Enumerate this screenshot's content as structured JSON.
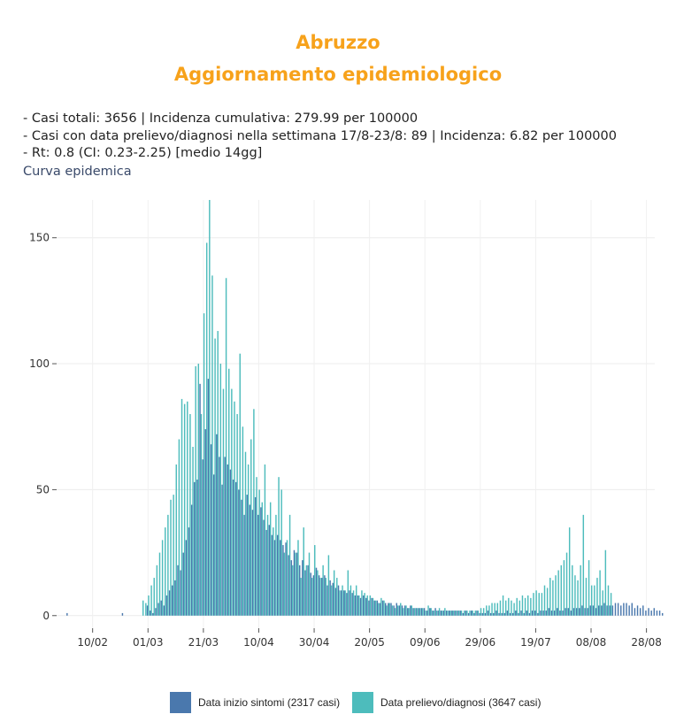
{
  "header": {
    "title_line1": "Abruzzo",
    "title_line2": "Aggiornamento epidemiologico",
    "title_color": "#f7a21b",
    "info_lines": [
      "- Casi totali: 3656 | Incidenza cumulativa: 279.99 per 100000",
      "- Casi con data prelievo/diagnosi nella settimana 17/8-23/8: 89 | Incidenza: 6.82 per 100000",
      "- Rt: 0.8 (CI: 0.23-2.25) [medio 14gg]"
    ],
    "subtitle": "Curva epidemica"
  },
  "chart_data": {
    "type": "bar",
    "x_axis": "date",
    "xlim": [
      "2020-01-28",
      "2020-08-31"
    ],
    "ylim": [
      -5,
      165
    ],
    "yticks": [
      0,
      50,
      100,
      150
    ],
    "ytick_labels": [
      "0",
      "50",
      "100",
      "150"
    ],
    "xtick_dates": [
      "2020-02-10",
      "2020-03-01",
      "2020-03-21",
      "2020-04-10",
      "2020-04-30",
      "2020-05-20",
      "2020-06-09",
      "2020-06-29",
      "2020-07-19",
      "2020-08-08",
      "2020-08-28"
    ],
    "xtick_labels": [
      "10/02",
      "01/03",
      "21/03",
      "10/04",
      "30/04",
      "20/05",
      "09/06",
      "29/06",
      "19/07",
      "08/08",
      "28/08"
    ],
    "grid": true,
    "legend_position": "bottom",
    "series": [
      {
        "name": "Data inizio sintomi (2317 casi)",
        "color": "#4a78ad",
        "start_date": "2020-02-01",
        "values": [
          1,
          0,
          0,
          0,
          0,
          0,
          0,
          0,
          0,
          0,
          0,
          0,
          0,
          0,
          0,
          0,
          0,
          0,
          0,
          0,
          1,
          0,
          0,
          0,
          0,
          0,
          0,
          0,
          0,
          4,
          2,
          1,
          3,
          5,
          6,
          4,
          8,
          10,
          12,
          14,
          20,
          18,
          25,
          30,
          35,
          44,
          53,
          54,
          92,
          62,
          74,
          94,
          68,
          56,
          72,
          63,
          52,
          63,
          60,
          58,
          54,
          53,
          50,
          46,
          40,
          48,
          44,
          42,
          47,
          40,
          43,
          38,
          34,
          36,
          32,
          30,
          32,
          30,
          28,
          29,
          24,
          22,
          26,
          25,
          20,
          22,
          18,
          20,
          17,
          16,
          19,
          16,
          15,
          16,
          12,
          14,
          13,
          11,
          12,
          10,
          10,
          9,
          10,
          9,
          8,
          8,
          7,
          8,
          7,
          6,
          7,
          6,
          6,
          5,
          6,
          5,
          5,
          5,
          4,
          5,
          4,
          4,
          4,
          3,
          4,
          3,
          3,
          3,
          3,
          3,
          2,
          3,
          2,
          3,
          2,
          2,
          2,
          2,
          2,
          2,
          2,
          2,
          2,
          1,
          2,
          1,
          2,
          1,
          2,
          1,
          1,
          1,
          2,
          1,
          1,
          2,
          1,
          1,
          1,
          2,
          1,
          1,
          2,
          1,
          2,
          1,
          2,
          1,
          2,
          2,
          1,
          2,
          2,
          2,
          3,
          2,
          2,
          3,
          2,
          2,
          3,
          3,
          2,
          3,
          3,
          3,
          4,
          3,
          3,
          4,
          4,
          3,
          4,
          4,
          5,
          4,
          4,
          4,
          5,
          5,
          4,
          5,
          5,
          4,
          5,
          3,
          4,
          3,
          4,
          2,
          3,
          2,
          3,
          2,
          2,
          1
        ]
      },
      {
        "name": "Data prelievo/diagnosi (3647 casi)",
        "color": "#4dbcbc",
        "start_date": "2020-02-28",
        "values": [
          6,
          5,
          8,
          12,
          15,
          20,
          25,
          30,
          35,
          40,
          46,
          48,
          60,
          70,
          86,
          84,
          85,
          80,
          67,
          99,
          100,
          80,
          120,
          148,
          165,
          135,
          110,
          113,
          100,
          90,
          134,
          98,
          90,
          85,
          80,
          104,
          75,
          65,
          60,
          70,
          82,
          55,
          50,
          45,
          60,
          40,
          45,
          35,
          40,
          55,
          50,
          25,
          30,
          40,
          20,
          25,
          30,
          15,
          35,
          20,
          25,
          15,
          28,
          18,
          15,
          20,
          15,
          24,
          12,
          18,
          15,
          10,
          12,
          10,
          18,
          12,
          10,
          12,
          8,
          10,
          9,
          8,
          8,
          7,
          6,
          5,
          7,
          6,
          4,
          5,
          4,
          3,
          4,
          5,
          3,
          4,
          3,
          4,
          3,
          3,
          3,
          3,
          2,
          4,
          3,
          2,
          2,
          3,
          2,
          3,
          2,
          2,
          2,
          2,
          2,
          2,
          2,
          2,
          2,
          2,
          2,
          2,
          3,
          3,
          4,
          4,
          5,
          5,
          5,
          6,
          8,
          6,
          7,
          6,
          5,
          7,
          6,
          8,
          7,
          8,
          7,
          9,
          10,
          9,
          9,
          12,
          11,
          15,
          14,
          16,
          18,
          20,
          22,
          25,
          35,
          20,
          16,
          14,
          20,
          40,
          15,
          22,
          12,
          12,
          15,
          18,
          10,
          26,
          12,
          9
        ]
      }
    ]
  }
}
